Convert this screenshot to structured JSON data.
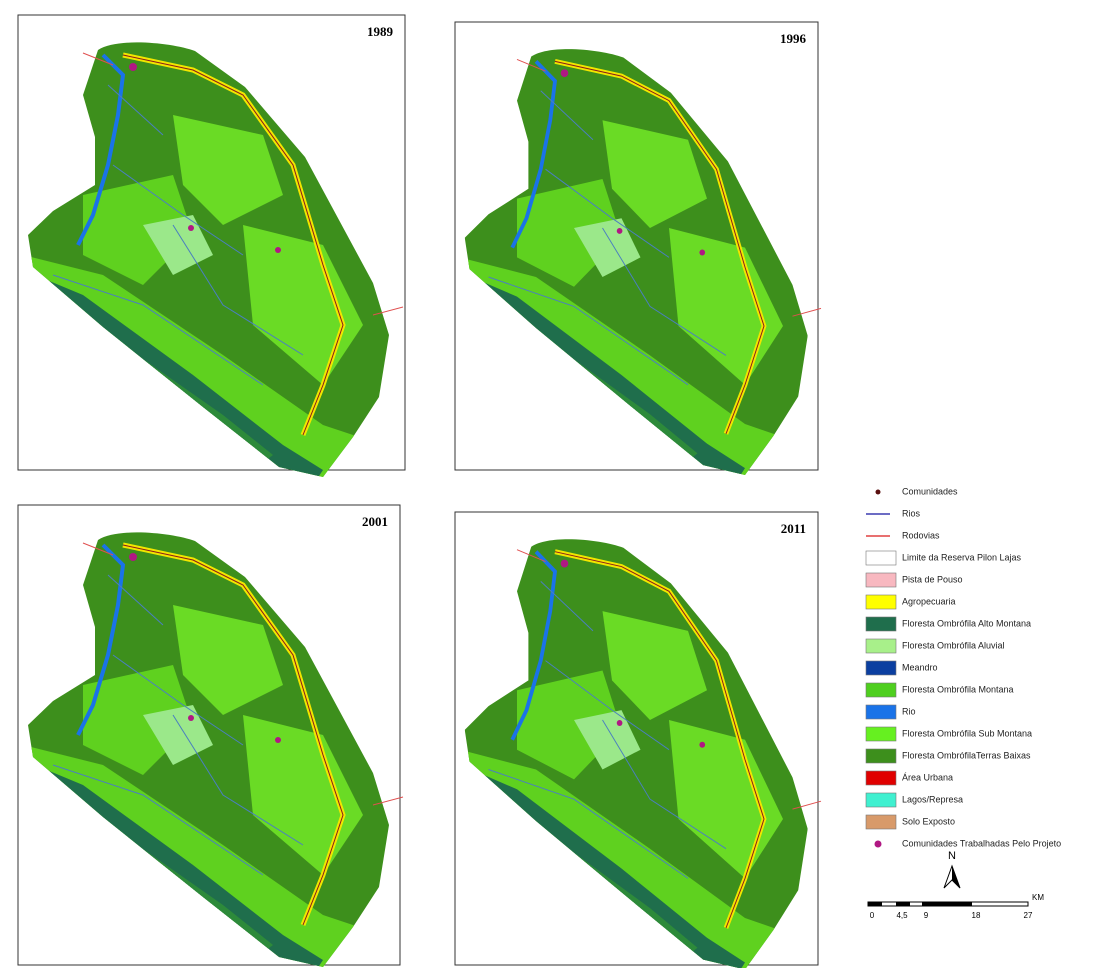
{
  "maps": [
    {
      "year": "1989"
    },
    {
      "year": "1996"
    },
    {
      "year": "2001"
    },
    {
      "year": "2011"
    }
  ],
  "legend": [
    {
      "label": "Comunidades"
    },
    {
      "label": "Rios"
    },
    {
      "label": "Rodovias"
    },
    {
      "label": "Limite da Reserva Pilon Lajas"
    },
    {
      "label": "Pista de Pouso"
    },
    {
      "label": "Agropecuaria"
    },
    {
      "label": "Floresta Ombrófila Alto Montana"
    },
    {
      "label": "Floresta Ombrófila Aluvial"
    },
    {
      "label": "Meandro"
    },
    {
      "label": "Floresta Ombrófila Montana"
    },
    {
      "label": "Rio"
    },
    {
      "label": "Floresta Ombrófila Sub Montana"
    },
    {
      "label": "Floresta OmbrófilaTerras Baixas"
    },
    {
      "label": "Área Urbana"
    },
    {
      "label": "Lagos/Represa"
    },
    {
      "label": "Solo Exposto"
    },
    {
      "label": "Comunidades Trabalhadas Pelo Projeto"
    }
  ],
  "north": "N",
  "scale": {
    "unit": "KM",
    "labels": [
      "0",
      "4,5",
      "9",
      "18",
      "27"
    ]
  }
}
